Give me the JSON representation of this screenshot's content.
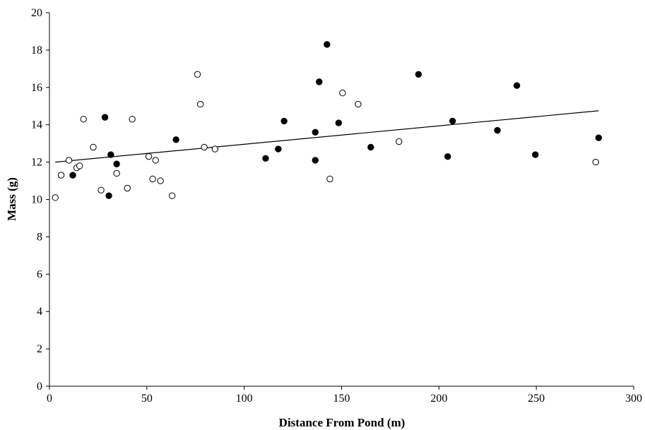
{
  "chart_data": {
    "type": "scatter",
    "title": "",
    "xlabel": "Distance From Pond (m)",
    "ylabel": "Mass (g)",
    "xlim": [
      0,
      300
    ],
    "ylim": [
      0,
      20
    ],
    "xticks": [
      0,
      50,
      100,
      150,
      200,
      250,
      300
    ],
    "yticks": [
      0,
      2,
      4,
      6,
      8,
      10,
      12,
      14,
      16,
      18,
      20
    ],
    "grid": false,
    "legend": "none",
    "series": [
      {
        "marker": "open-circle",
        "color": "#000000",
        "points": [
          [
            3,
            10.1
          ],
          [
            6,
            11.3
          ],
          [
            10,
            12.1
          ],
          [
            14,
            11.7
          ],
          [
            15.5,
            11.8
          ],
          [
            17.5,
            14.3
          ],
          [
            22.5,
            12.8
          ],
          [
            26.5,
            10.5
          ],
          [
            34.5,
            11.4
          ],
          [
            40,
            10.6
          ],
          [
            42.5,
            14.3
          ],
          [
            51,
            12.3
          ],
          [
            53,
            11.1
          ],
          [
            54.5,
            12.1
          ],
          [
            57,
            11.0
          ],
          [
            63,
            10.2
          ],
          [
            76,
            16.7
          ],
          [
            77.5,
            15.1
          ],
          [
            79.5,
            12.8
          ],
          [
            85,
            12.7
          ],
          [
            144,
            11.1
          ],
          [
            150.5,
            15.7
          ],
          [
            158.5,
            15.1
          ],
          [
            179.5,
            13.1
          ],
          [
            280.5,
            12.0
          ]
        ]
      },
      {
        "marker": "filled-circle",
        "color": "#000000",
        "points": [
          [
            12,
            11.3
          ],
          [
            28.5,
            14.4
          ],
          [
            30.5,
            10.2
          ],
          [
            31.5,
            12.4
          ],
          [
            34.5,
            11.9
          ],
          [
            65,
            13.2
          ],
          [
            111,
            12.2
          ],
          [
            117.5,
            12.7
          ],
          [
            120.5,
            14.2
          ],
          [
            136.5,
            13.6
          ],
          [
            136.5,
            12.1
          ],
          [
            138.5,
            16.3
          ],
          [
            142.5,
            18.3
          ],
          [
            148.5,
            14.1
          ],
          [
            165,
            12.8
          ],
          [
            189.5,
            16.7
          ],
          [
            204.5,
            12.3
          ],
          [
            207,
            14.2
          ],
          [
            230,
            13.7
          ],
          [
            240,
            16.1
          ],
          [
            249.5,
            12.4
          ],
          [
            282,
            13.3
          ]
        ]
      }
    ],
    "trendline": {
      "type": "linear",
      "x": [
        3,
        282
      ],
      "y": [
        12.0,
        14.75
      ]
    }
  }
}
